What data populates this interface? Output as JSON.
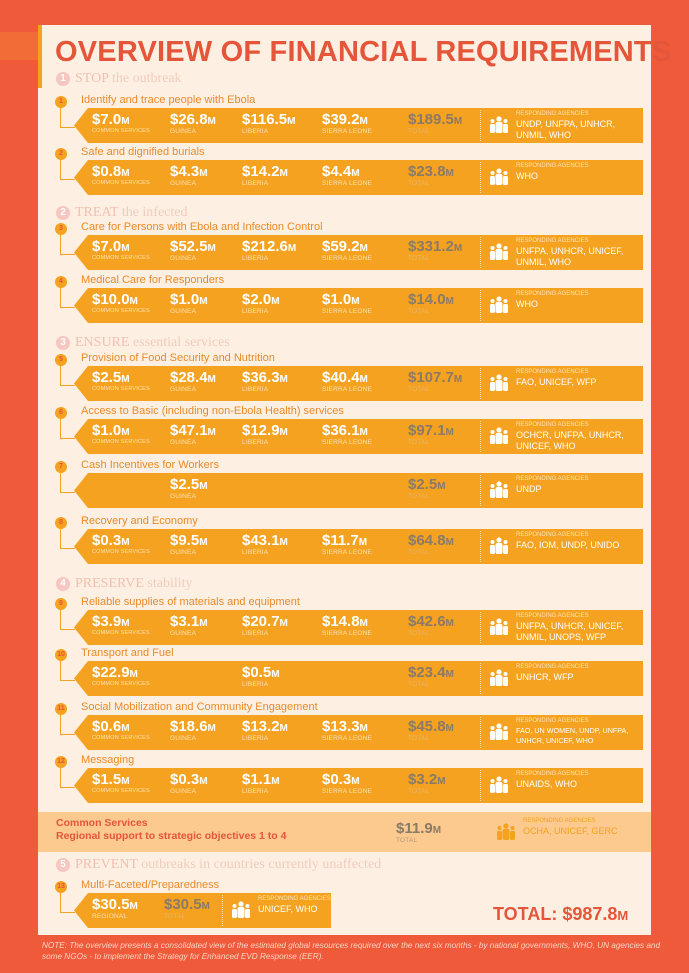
{
  "title": "OVERVIEW OF FINANCIAL REQUIREMENTS",
  "colors": {
    "background": "#ef5a3a",
    "panel": "#fdf0e3",
    "bar": "#f4a21f",
    "title": "#e5553a",
    "common_band": "#fcc98e"
  },
  "unit": "M",
  "agencies_label": "RESPONDING AGENCIES",
  "labels": {
    "common": "COMMON SERVICES",
    "guinea": "GUINEA",
    "liberia": "LIBERIA",
    "sierra": "SIERRA LEONE",
    "total": "TOTAL",
    "regional": "REGIONAL"
  },
  "sections": [
    {
      "num": "1",
      "keyword": "STOP",
      "rest": " the outbreak"
    },
    {
      "num": "2",
      "keyword": "TREAT",
      "rest": " the infected"
    },
    {
      "num": "3",
      "keyword": "ENSURE",
      "rest": " essential services"
    },
    {
      "num": "4",
      "keyword": "PRESERVE",
      "rest": " stability"
    },
    {
      "num": "5",
      "keyword": "PREVENT",
      "rest": " outbreaks in countries currently unaffected"
    }
  ],
  "items": [
    {
      "num": "1",
      "label": "Identify and trace people with Ebola",
      "common": "$7.0",
      "guinea": "$26.8",
      "liberia": "$116.5",
      "sierra": "$39.2",
      "total": "$189.5",
      "agencies": "UNDP, UNFPA, UNHCR, UNMIL, WHO"
    },
    {
      "num": "2",
      "label": "Safe and dignified burials",
      "common": "$0.8",
      "guinea": "$4.3",
      "liberia": "$14.2",
      "sierra": "$4.4",
      "total": "$23.8",
      "agencies": "WHO"
    },
    {
      "num": "3",
      "label": "Care for Persons with Ebola and Infection Control",
      "common": "$7.0",
      "guinea": "$52.5",
      "liberia": "$212.6",
      "sierra": "$59.2",
      "total": "$331.2",
      "agencies": "UNFPA, UNHCR, UNICEF, UNMIL, WHO"
    },
    {
      "num": "4",
      "label": "Medical Care for Responders",
      "common": "$10.0",
      "guinea": "$1.0",
      "liberia": "$2.0",
      "sierra": "$1.0",
      "total": "$14.0",
      "agencies": "WHO"
    },
    {
      "num": "5",
      "label": "Provision of Food Security and Nutrition",
      "common": "$2.5",
      "guinea": "$28.4",
      "liberia": "$36.3",
      "sierra": "$40.4",
      "total": "$107.7",
      "agencies": "FAO, UNICEF, WFP"
    },
    {
      "num": "6",
      "label": "Access to Basic (including non-Ebola Health) services",
      "common": "$1.0",
      "guinea": "$47.1",
      "liberia": "$12.9",
      "sierra": "$36.1",
      "total": "$97.1",
      "agencies": "OCHCR, UNFPA, UNHCR, UNICEF, WHO"
    },
    {
      "num": "7",
      "label": "Cash Incentives for Workers",
      "guinea": "$2.5",
      "total": "$2.5",
      "agencies": "UNDP"
    },
    {
      "num": "8",
      "label": "Recovery and Economy",
      "common": "$0.3",
      "guinea": "$9.5",
      "liberia": "$43.1",
      "sierra": "$11.7",
      "total": "$64.8",
      "agencies": "FAO, IOM, UNDP, UNIDO"
    },
    {
      "num": "9",
      "label": "Reliable supplies of materials and equipment",
      "common": "$3.9",
      "guinea": "$3.1",
      "liberia": "$20.7",
      "sierra": "$14.8",
      "total": "$42.6",
      "agencies": "UNFPA, UNHCR, UNICEF, UNMIL, UNOPS, WFP"
    },
    {
      "num": "10",
      "label": "Transport and Fuel",
      "common": "$22.9",
      "liberia": "$0.5",
      "total": "$23.4",
      "agencies": "UNHCR, WFP"
    },
    {
      "num": "11",
      "label": "Social Mobilization and Community Engagement",
      "common": "$0.6",
      "guinea": "$18.6",
      "liberia": "$13.2",
      "sierra": "$13.3",
      "total": "$45.8",
      "agencies": "FAO, UN WOMEN, UNDP, UNFPA, UNHCR, UNICEF, WHO"
    },
    {
      "num": "12",
      "label": "Messaging",
      "common": "$1.5",
      "guinea": "$0.3",
      "liberia": "$1.1",
      "sierra": "$0.3",
      "total": "$3.2",
      "agencies": "UNAIDS, WHO"
    },
    {
      "num": "13",
      "label": "Multi-Faceted/Preparedness",
      "regional": "$30.5",
      "total": "$30.5",
      "agencies": "UNICEF, WHO"
    }
  ],
  "common_services": {
    "line1": "Common Services",
    "line2": "Regional support to strategic objectives 1 to 4",
    "total": "$11.9",
    "agencies": "OCHA, UNICEF, GERC"
  },
  "grand_total": {
    "label": "TOTAL: $987.8",
    "unit": "M"
  },
  "note": "NOTE: The overview presents a consolidated view of the estimated global resources required over the next six months - by national governments, WHO, UN agencies and some NGOs - to implement the Strategy for Enhanced EVD Response (EER)."
}
